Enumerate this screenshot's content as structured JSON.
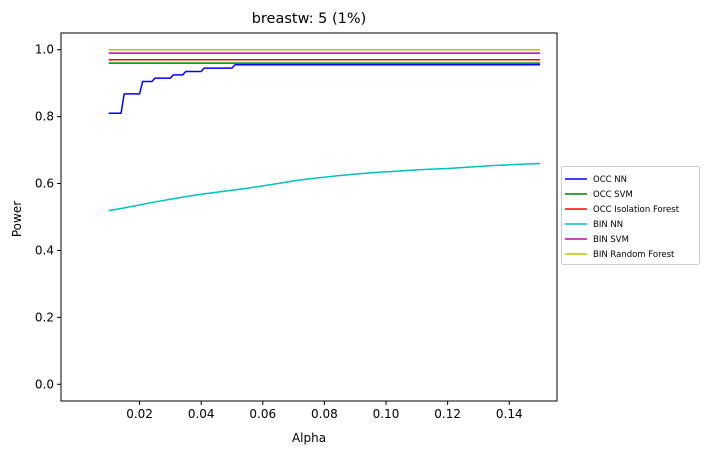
{
  "chart_data": {
    "type": "line",
    "title": "breastw: 5 (1%)",
    "xlabel": "Alpha",
    "ylabel": "Power",
    "xlim": [
      -0.0055,
      0.1555
    ],
    "ylim": [
      -0.05,
      1.05
    ],
    "xticks": [
      0.02,
      0.04,
      0.06,
      0.08,
      0.1,
      0.12,
      0.14
    ],
    "xtick_labels": [
      "0.02",
      "0.04",
      "0.06",
      "0.08",
      "0.10",
      "0.12",
      "0.14"
    ],
    "yticks": [
      0.0,
      0.2,
      0.4,
      0.6,
      0.8,
      1.0
    ],
    "ytick_labels": [
      "0.0",
      "0.2",
      "0.4",
      "0.6",
      "0.8",
      "1.0"
    ],
    "grid": false,
    "legend_position": "right",
    "series": [
      {
        "name": "OCC NN",
        "color": "#0000ff",
        "x": [
          0.01,
          0.013,
          0.014,
          0.015,
          0.016,
          0.017,
          0.018,
          0.019,
          0.02,
          0.021,
          0.022,
          0.023,
          0.024,
          0.025,
          0.026,
          0.027,
          0.028,
          0.029,
          0.03,
          0.031,
          0.032,
          0.033,
          0.034,
          0.035,
          0.036,
          0.037,
          0.038,
          0.039,
          0.04,
          0.041,
          0.042,
          0.043,
          0.044,
          0.045,
          0.046,
          0.047,
          0.048,
          0.049,
          0.05,
          0.051,
          0.052,
          0.15
        ],
        "y": [
          0.81,
          0.81,
          0.81,
          0.868,
          0.868,
          0.868,
          0.868,
          0.868,
          0.868,
          0.905,
          0.905,
          0.905,
          0.905,
          0.915,
          0.915,
          0.915,
          0.915,
          0.915,
          0.915,
          0.925,
          0.925,
          0.925,
          0.925,
          0.935,
          0.935,
          0.935,
          0.935,
          0.935,
          0.935,
          0.945,
          0.945,
          0.945,
          0.945,
          0.945,
          0.945,
          0.945,
          0.945,
          0.945,
          0.945,
          0.955,
          0.955,
          0.955
        ]
      },
      {
        "name": "OCC SVM",
        "color": "#008000",
        "x": [
          0.01,
          0.15
        ],
        "y": [
          0.96,
          0.96
        ]
      },
      {
        "name": "OCC Isolation Forest",
        "color": "#ff0000",
        "x": [
          0.01,
          0.15
        ],
        "y": [
          0.97,
          0.97
        ]
      },
      {
        "name": "BIN NN",
        "color": "#00bfbf",
        "x": [
          0.01,
          0.015,
          0.02,
          0.025,
          0.03,
          0.035,
          0.04,
          0.045,
          0.05,
          0.055,
          0.06,
          0.065,
          0.07,
          0.075,
          0.08,
          0.085,
          0.09,
          0.095,
          0.1,
          0.105,
          0.11,
          0.115,
          0.12,
          0.125,
          0.13,
          0.135,
          0.14,
          0.145,
          0.15
        ],
        "y": [
          0.519,
          0.527,
          0.536,
          0.545,
          0.553,
          0.561,
          0.568,
          0.574,
          0.58,
          0.586,
          0.593,
          0.6,
          0.608,
          0.614,
          0.619,
          0.624,
          0.628,
          0.632,
          0.635,
          0.638,
          0.641,
          0.643,
          0.645,
          0.648,
          0.651,
          0.654,
          0.656,
          0.658,
          0.66
        ]
      },
      {
        "name": "BIN SVM",
        "color": "#bf00bf",
        "x": [
          0.01,
          0.15
        ],
        "y": [
          0.99,
          0.99
        ]
      },
      {
        "name": "BIN Random Forest",
        "color": "#bfbf00",
        "x": [
          0.01,
          0.15
        ],
        "y": [
          1.0,
          1.0
        ]
      }
    ]
  }
}
